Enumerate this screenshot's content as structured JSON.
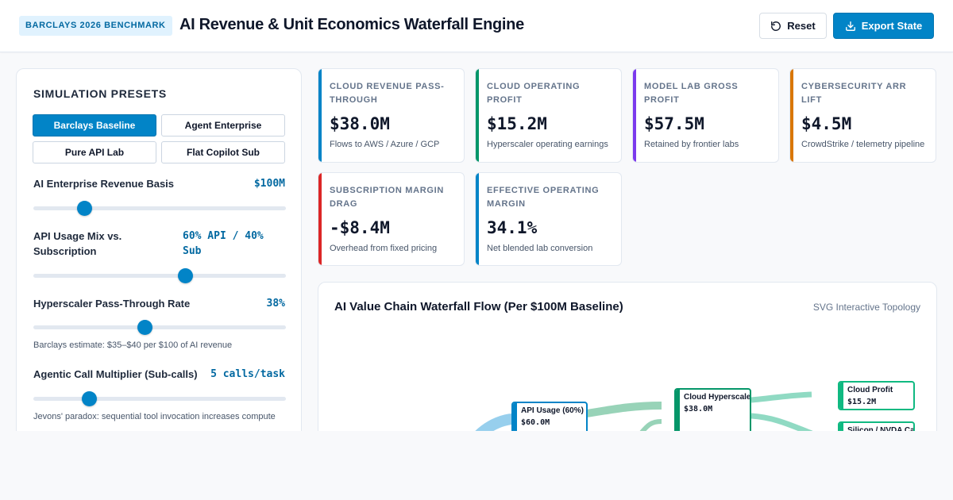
{
  "header": {
    "badge": "BARCLAYS 2026 BENCHMARK",
    "title": "AI Revenue & Unit Economics Waterfall Engine",
    "reset_label": "Reset",
    "export_label": "Export State"
  },
  "sidebar": {
    "title": "SIMULATION PRESETS",
    "presets": [
      {
        "label": "Barclays Baseline",
        "active": true
      },
      {
        "label": "Agent Enterprise",
        "active": false
      },
      {
        "label": "Pure API Lab",
        "active": false
      },
      {
        "label": "Flat Copilot Sub",
        "active": false
      }
    ],
    "controls": [
      {
        "label": "AI Enterprise Revenue Basis",
        "value": "$100M",
        "level": 0.2
      },
      {
        "label": "API Usage Mix vs. Subscription",
        "value": "60% API / 40% Sub",
        "level": 0.6
      },
      {
        "label": "Hyperscaler Pass-Through Rate",
        "value": "38%",
        "level": 0.44,
        "note": "Barclays estimate: $35–$40 per $100 of AI revenue"
      },
      {
        "label": "Agentic Call Multiplier (Sub-calls)",
        "value": "5 calls/task",
        "level": 0.22,
        "note": "Jevons' paradox: sequential tool invocation increases compute"
      }
    ]
  },
  "kpis": [
    {
      "label": "CLOUD REVENUE PASS-THROUGH",
      "value": "$38.0M",
      "sub": "Flows to AWS / Azure / GCP",
      "color": "#0284c7"
    },
    {
      "label": "CLOUD OPERATING PROFIT",
      "value": "$15.2M",
      "sub": "Hyperscaler operating earnings",
      "color": "#059669"
    },
    {
      "label": "MODEL LAB GROSS PROFIT",
      "value": "$57.5M",
      "sub": "Retained by frontier labs",
      "color": "#7c3aed"
    },
    {
      "label": "CYBERSECURITY ARR LIFT",
      "value": "$4.5M",
      "sub": "CrowdStrike / telemetry pipeline",
      "color": "#d97706"
    },
    {
      "label": "SUBSCRIPTION MARGIN DRAG",
      "value": "-$8.4M",
      "sub": "Overhead from fixed pricing",
      "color": "#dc2626"
    },
    {
      "label": "EFFECTIVE OPERATING MARGIN",
      "value": "34.1%",
      "sub": "Net blended lab conversion",
      "color": "#0284c7"
    }
  ],
  "flow": {
    "title": "AI Value Chain Waterfall Flow (Per $100M Baseline)",
    "subtitle": "SVG Interactive Topology",
    "nodes": [
      {
        "label": "API Usage (60%)",
        "value": "$60.0M",
        "color": "#0284c7"
      },
      {
        "label": "Cloud Hyperscalers",
        "value": "$38.0M",
        "color": "#059669"
      },
      {
        "label": "Cloud Profit",
        "value": "$15.2M",
        "color": "#10b981"
      },
      {
        "label": "Silicon / NVDA Cap",
        "value": "",
        "color": "#10b981"
      }
    ]
  }
}
